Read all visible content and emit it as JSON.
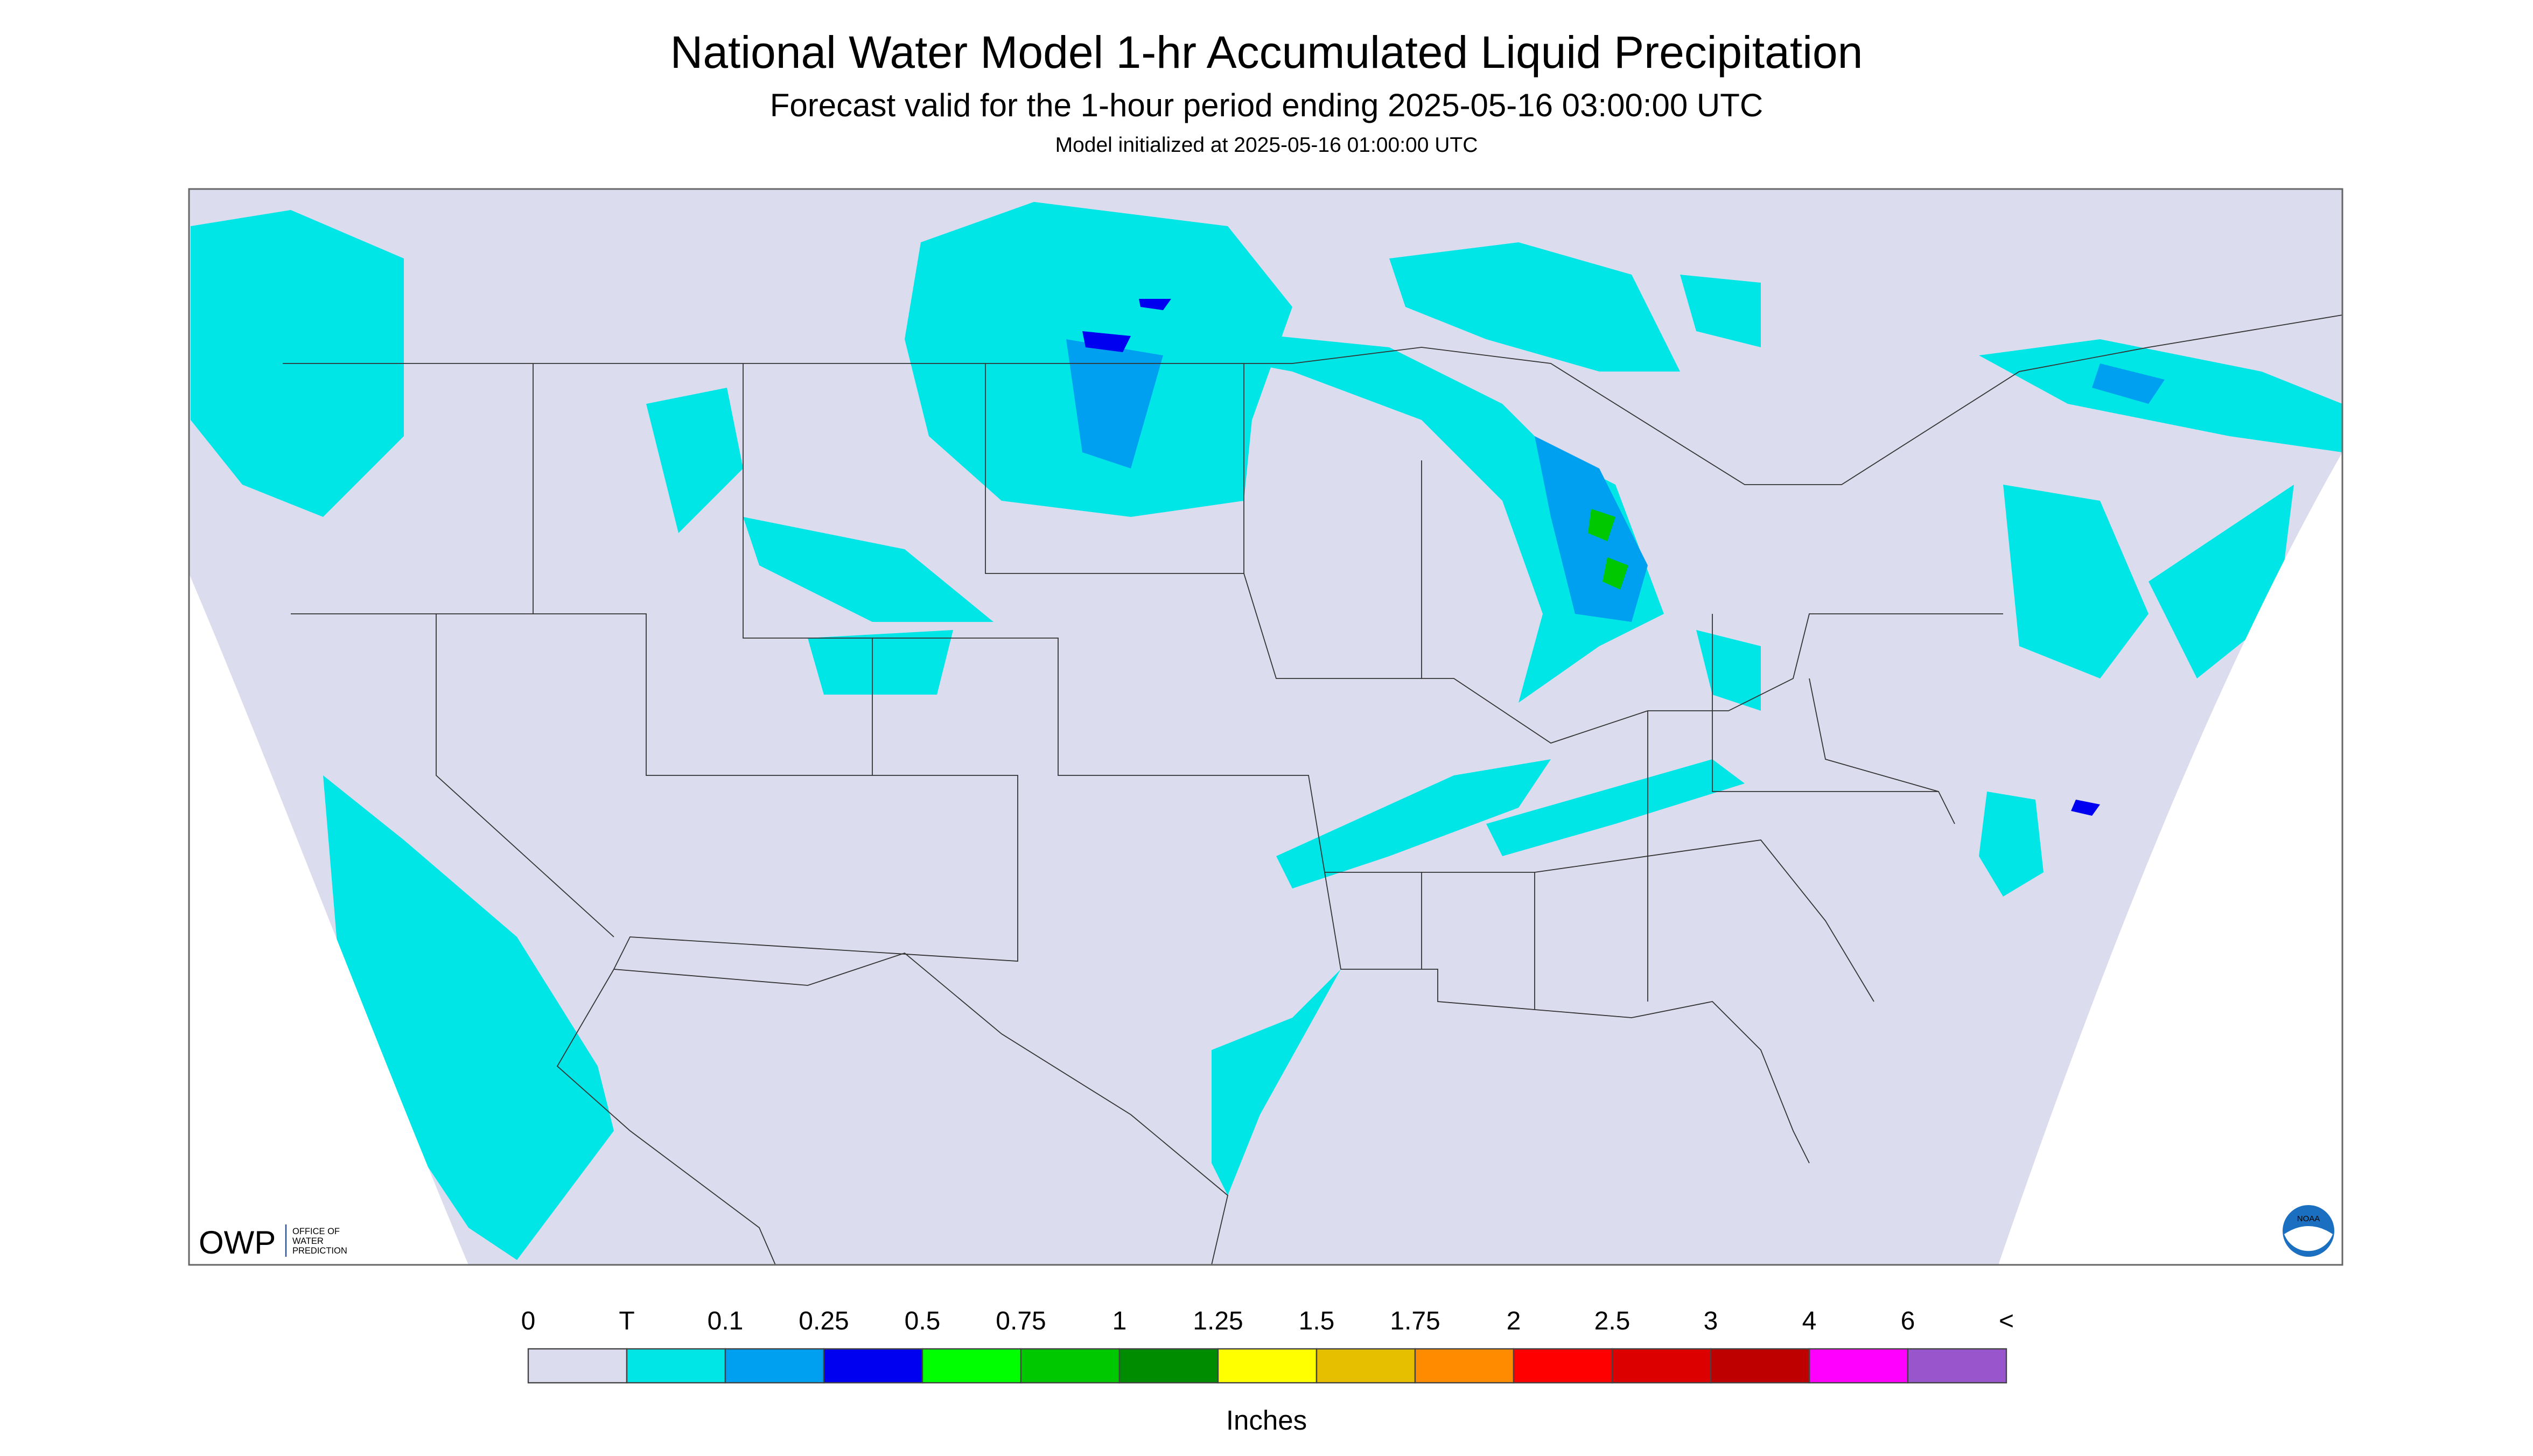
{
  "header": {
    "title": "National Water Model 1-hr Accumulated Liquid Precipitation",
    "subtitle": "Forecast valid for the 1-hour period ending 2025-05-16 03:00:00 UTC",
    "note": "Model initialized at 2025-05-16 01:00:00 UTC"
  },
  "legend": {
    "labels": [
      "0",
      "T",
      "0.1",
      "0.25",
      "0.5",
      "0.75",
      "1",
      "1.25",
      "1.5",
      "1.75",
      "2",
      "2.5",
      "3",
      "4",
      "6",
      "<"
    ],
    "colors": [
      "#dcdcef",
      "#00e6e6",
      "#00a0f0",
      "#0000f0",
      "#00ff00",
      "#00c800",
      "#008c00",
      "#ffff00",
      "#e6c000",
      "#ff8c00",
      "#ff0000",
      "#dc0000",
      "#be0000",
      "#ff00ff",
      "#9955cc"
    ],
    "unit": "Inches"
  },
  "logos": {
    "owp": "OWP",
    "owp_text": [
      "OFFICE OF",
      "WATER",
      "PREDICTION"
    ],
    "noaa": "NOAA"
  }
}
